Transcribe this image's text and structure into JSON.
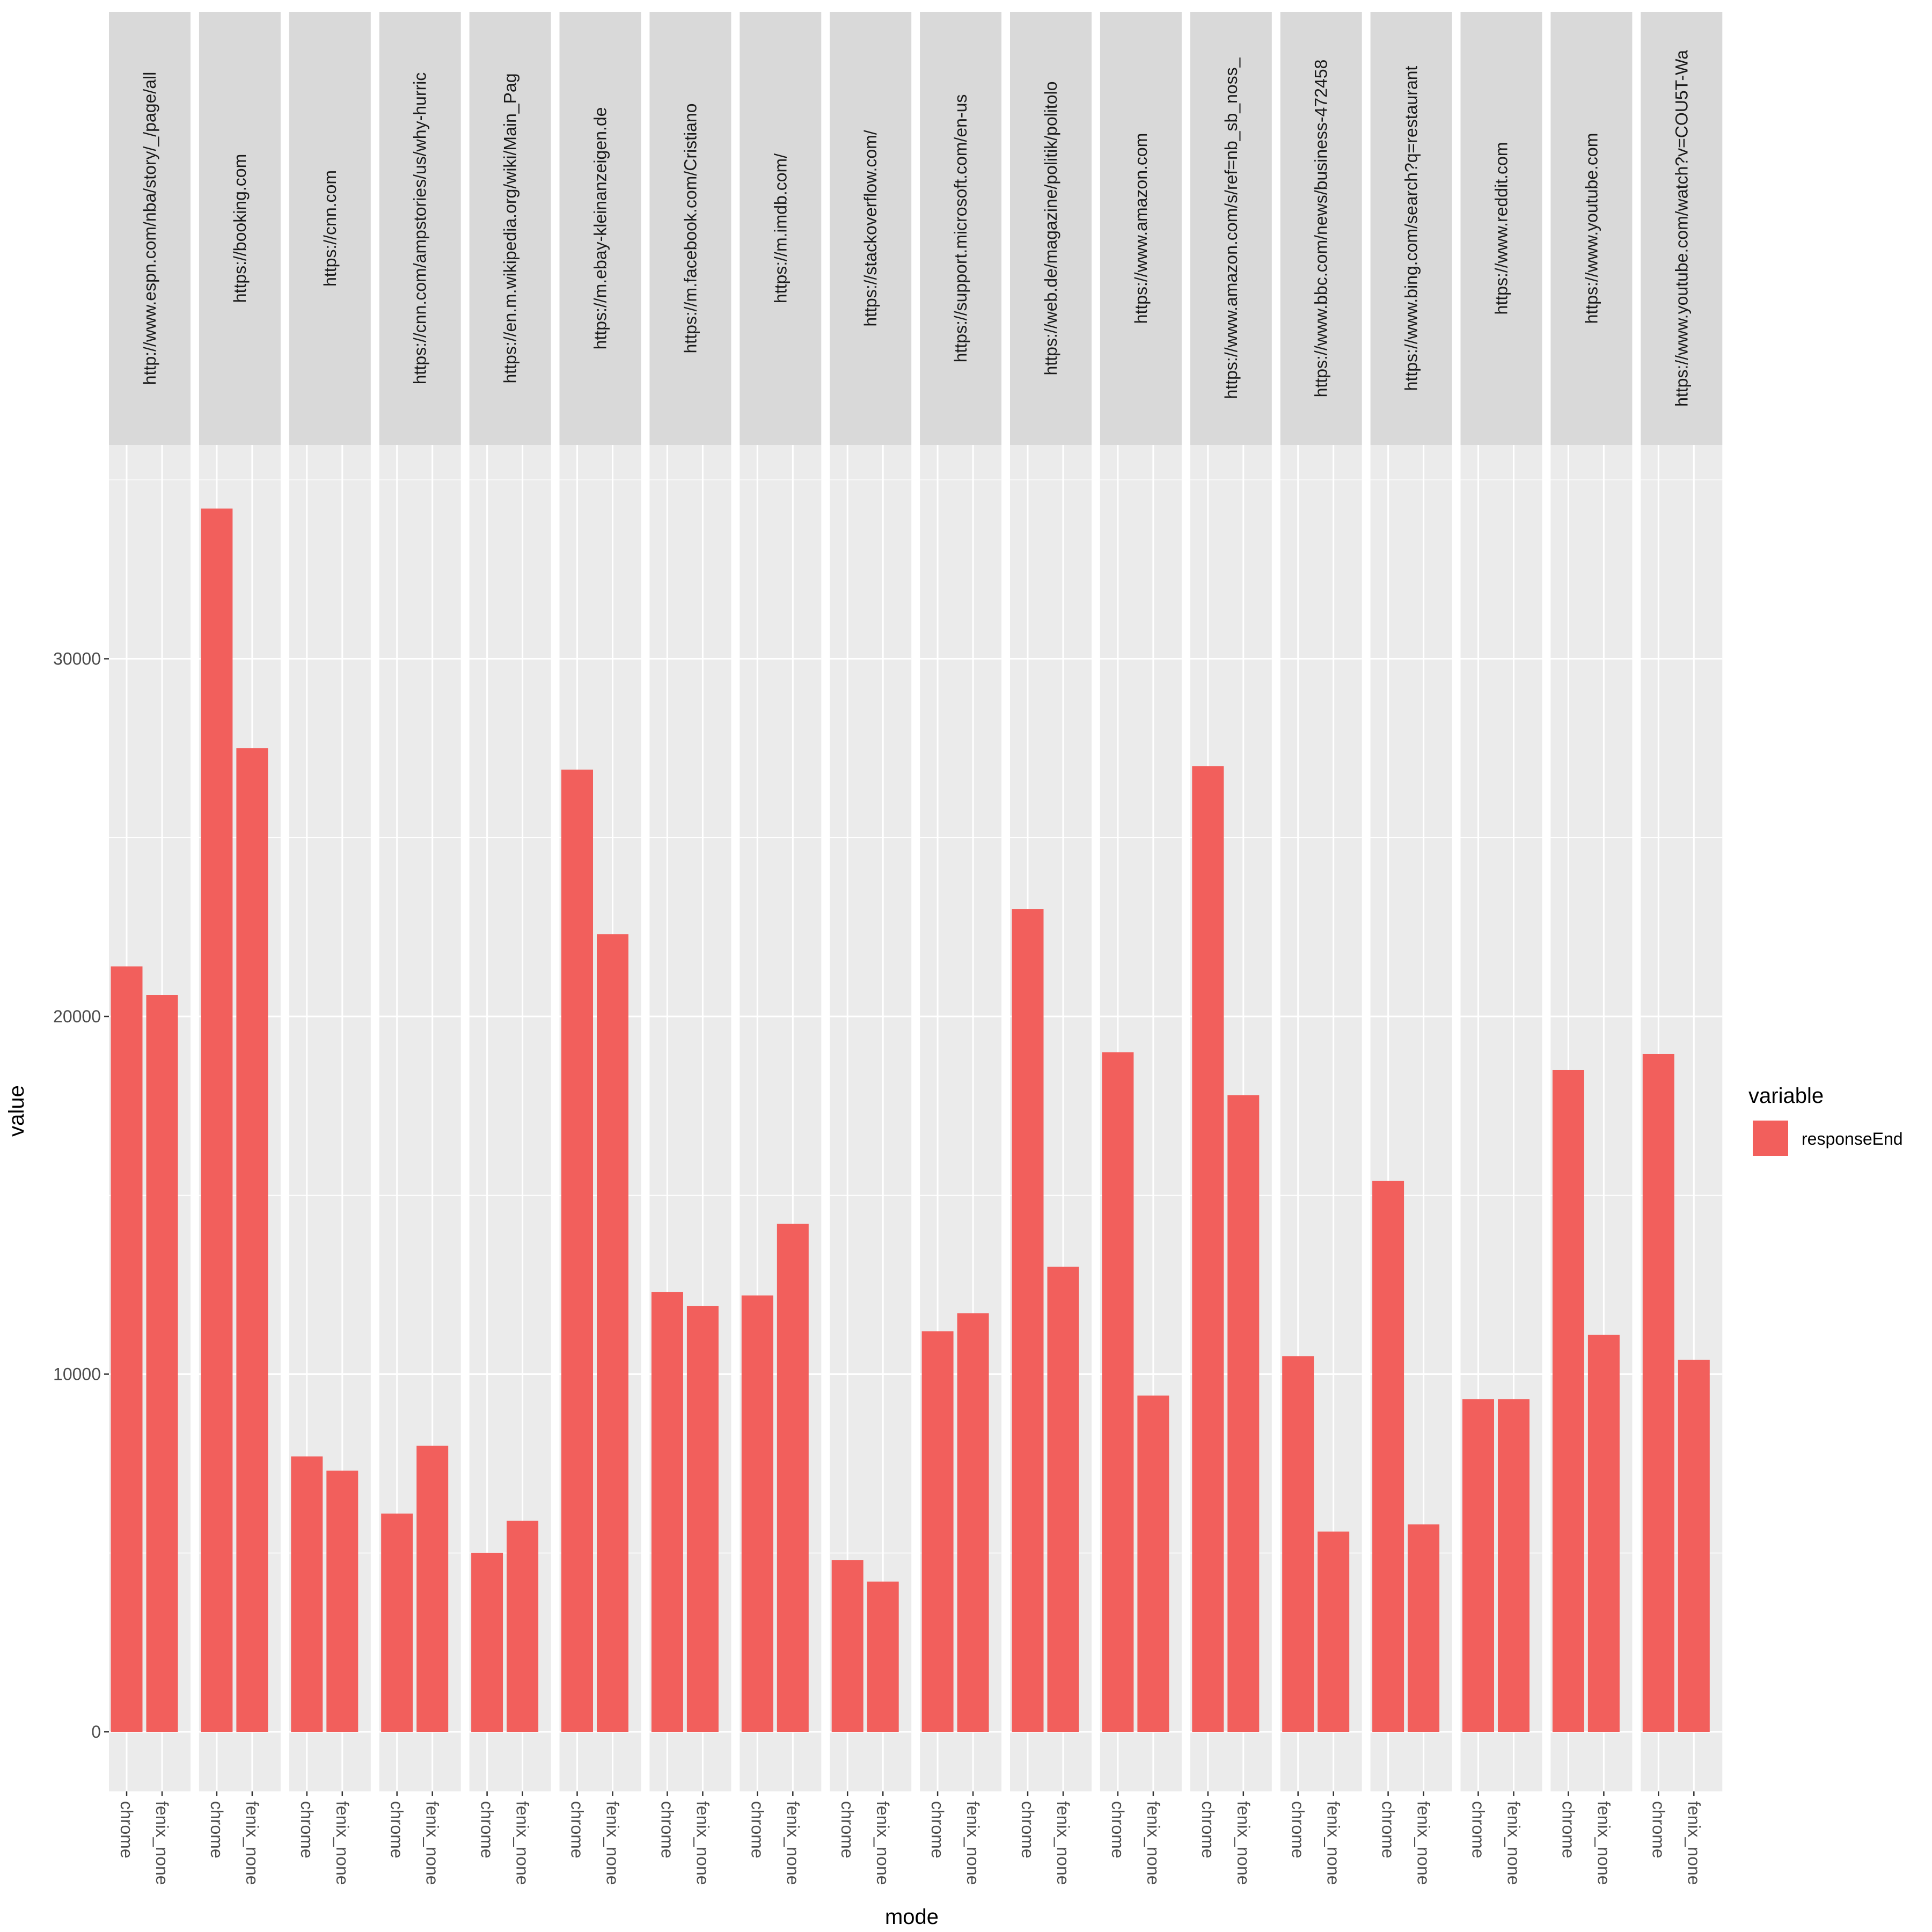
{
  "chart_data": {
    "type": "bar",
    "xlabel": "mode",
    "ylabel": "value",
    "ylim": [
      -1700,
      36200
    ],
    "yticks": [
      0,
      10000,
      20000,
      30000
    ],
    "ytick_labels": [
      "0",
      "10000",
      "20000",
      "30000"
    ],
    "legend": {
      "title": "variable",
      "placement": "right",
      "entries": [
        {
          "name": "responseEnd",
          "color": "#F25F5C"
        }
      ]
    },
    "colors": {
      "bar": "#F25F5C",
      "panel": "#EBEBEB",
      "strip": "#D9D9D9",
      "grid": "#FFFFFF"
    },
    "grid": true,
    "categories": [
      "chrome",
      "fenix_none"
    ],
    "facets": [
      {
        "label": "http://www.espn.com/nba/story/_/page/all",
        "values": [
          21400,
          20600
        ]
      },
      {
        "label": "https://booking.com",
        "values": [
          34200,
          27500
        ]
      },
      {
        "label": "https://cnn.com",
        "values": [
          7700,
          7300
        ]
      },
      {
        "label": "https://cnn.com/ampstories/us/why-hurric",
        "values": [
          6100,
          8000
        ]
      },
      {
        "label": "https://en.m.wikipedia.org/wiki/Main_Pag",
        "values": [
          5000,
          5900
        ]
      },
      {
        "label": "https://m.ebay-kleinanzeigen.de",
        "values": [
          26900,
          22300
        ]
      },
      {
        "label": "https://m.facebook.com/Cristiano",
        "values": [
          12300,
          11900
        ]
      },
      {
        "label": "https://m.imdb.com/",
        "values": [
          12200,
          14200
        ]
      },
      {
        "label": "https://stackoverflow.com/",
        "values": [
          4800,
          4200
        ]
      },
      {
        "label": "https://support.microsoft.com/en-us",
        "values": [
          11200,
          11700
        ]
      },
      {
        "label": "https://web.de/magazine/politik/politolo",
        "values": [
          23000,
          13000
        ]
      },
      {
        "label": "https://www.amazon.com",
        "values": [
          19000,
          9400
        ]
      },
      {
        "label": "https://www.amazon.com/s/ref=nb_sb_noss_",
        "values": [
          27000,
          17800
        ]
      },
      {
        "label": "https://www.bbc.com/news/business-472458",
        "values": [
          10500,
          5600
        ]
      },
      {
        "label": "https://www.bing.com/search?q=restaurant",
        "values": [
          15400,
          5800
        ]
      },
      {
        "label": "https://www.reddit.com",
        "values": [
          9300,
          9300
        ]
      },
      {
        "label": "https://www.youtube.com",
        "values": [
          18500,
          11100
        ]
      },
      {
        "label": "https://www.youtube.com/watch?v=COU5T-Wa",
        "values": [
          18950,
          10400
        ]
      }
    ]
  }
}
